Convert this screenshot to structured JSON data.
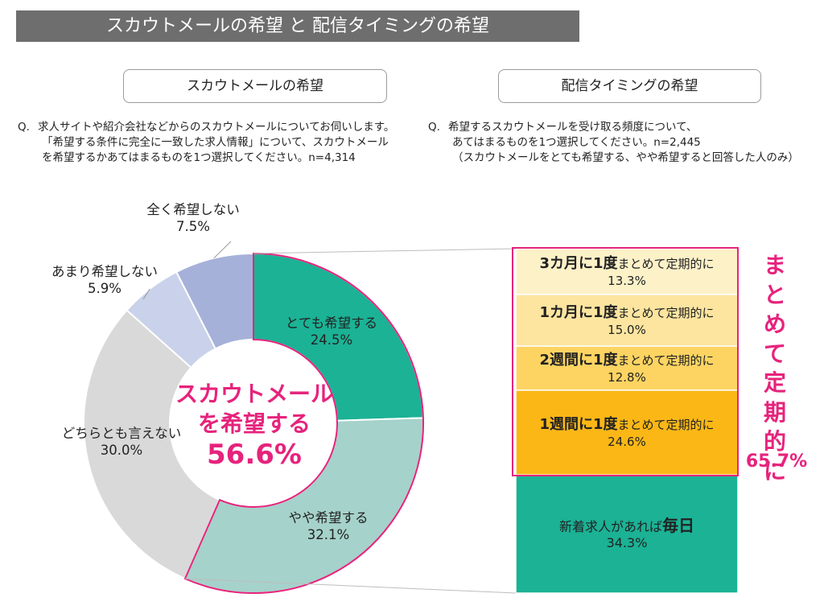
{
  "header": {
    "title": "スカウトメールの希望 と 配信タイミングの希望"
  },
  "left_panel": {
    "title": "スカウトメールの希望",
    "question_prefix": "Q.",
    "question_lines": [
      "求人サイトや紹介会社などからのスカウトメールについてお伺いします。",
      "「希望する条件に完全に一致した求人情報」について、スカウトメール",
      "を希望するかあてはまるものを1つ選択してください。n=4,314"
    ]
  },
  "right_panel": {
    "title": "配信タイミングの希望",
    "question_prefix": "Q.",
    "question_lines": [
      "希望するスカウトメールを受け取る頻度について、",
      "あてはまるものを1つ選択してください。n=2,445",
      "（スカウトメールをとても希望する、やや希望すると回答した人のみ）"
    ]
  },
  "chart_data": [
    {
      "type": "pie",
      "donut": true,
      "center_label": [
        "スカウトメール",
        "を希望する",
        "56.6%"
      ],
      "slices": [
        {
          "label": "とても希望する",
          "value": 24.5,
          "value_label": "24.5%",
          "color": "#1bb295"
        },
        {
          "label": "やや希望する",
          "value": 32.1,
          "value_label": "32.1%",
          "color": "#a5d2ca"
        },
        {
          "label": "どちらとも言えない",
          "value": 30.0,
          "value_label": "30.0%",
          "color": "#d9d9d9"
        },
        {
          "label": "あまり希望しない",
          "value": 5.9,
          "value_label": "5.9%",
          "color": "#c9d2ea"
        },
        {
          "label": "全く希望しない",
          "value": 7.5,
          "value_label": "7.5%",
          "color": "#a6b1d9"
        }
      ]
    },
    {
      "type": "bar",
      "stacked": true,
      "orientation": "vertical",
      "segments": [
        {
          "bold": "3カ月に1度",
          "rest": "まとめて定期的に",
          "value": 13.3,
          "value_label": "13.3%",
          "color": "#fdf1c8"
        },
        {
          "bold": "1カ月に1度",
          "rest": "まとめて定期的に",
          "value": 15.0,
          "value_label": "15.0%",
          "color": "#fde5a0"
        },
        {
          "bold": "2週間に1度",
          "rest": "まとめて定期的に",
          "value": 12.8,
          "value_label": "12.8%",
          "color": "#fdd462"
        },
        {
          "bold": "1週間に1度",
          "rest": "まとめて定期的に",
          "value": 24.6,
          "value_label": "24.6%",
          "color": "#fbb716"
        },
        {
          "rest": "新着求人があれば",
          "bold": "毎日",
          "value": 34.3,
          "value_label": "34.3%",
          "color": "#1bb295"
        }
      ],
      "group_total": {
        "label": "まとめて定期的に",
        "value": 65.7,
        "value_label": "65.7%"
      }
    }
  ],
  "colors": {
    "accent": "#e6237c",
    "banner": "#6e6e6e",
    "connector": "#bdbdbd"
  }
}
